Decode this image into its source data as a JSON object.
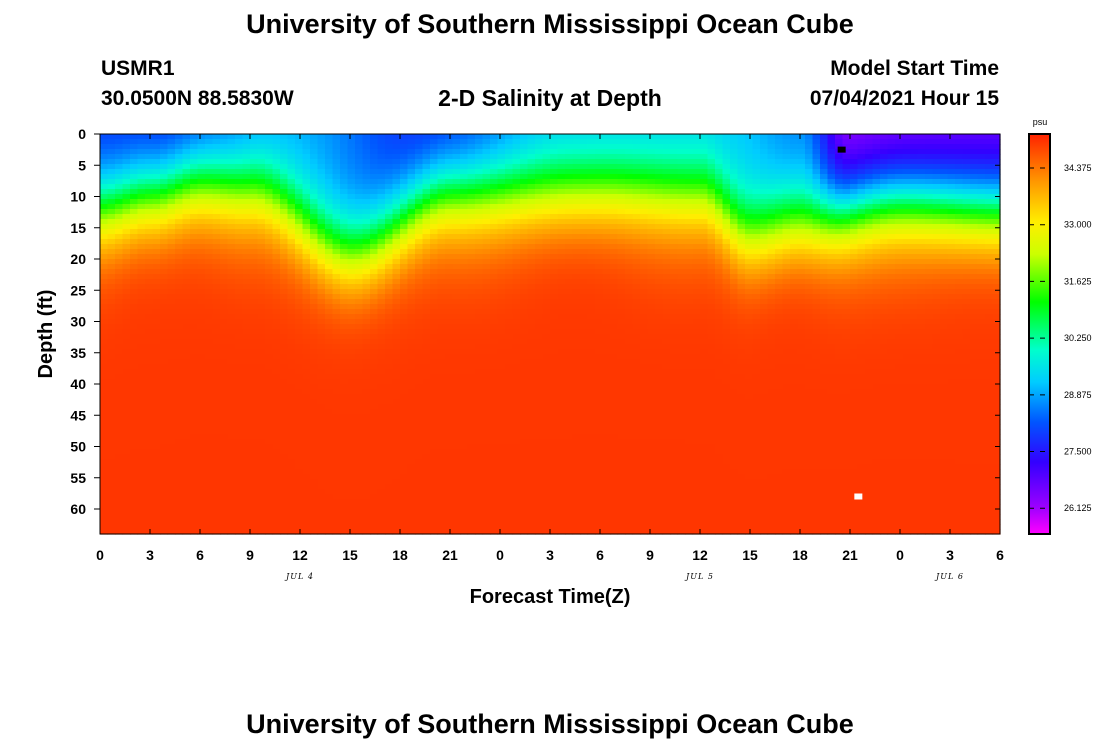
{
  "header": {
    "title": "University of Southern Mississippi Ocean Cube",
    "station": "USMR1",
    "coords": "30.0500N  88.5830W",
    "subtitle": "2-D Salinity at Depth",
    "model_label": "Model Start Time",
    "model_time": "07/04/2021 Hour 15"
  },
  "footer": {
    "title": "University of Southern Mississippi Ocean Cube"
  },
  "colors": {
    "background": "#ffffff",
    "axis": "#000000"
  },
  "chart_data": {
    "type": "heatmap",
    "title": "2-D Salinity at Depth",
    "xlabel": "Forecast Time(Z)",
    "ylabel": "Depth (ft)",
    "x_ticks": [
      "0",
      "3",
      "6",
      "9",
      "12",
      "15",
      "18",
      "21",
      "0",
      "3",
      "6",
      "9",
      "12",
      "15",
      "18",
      "21",
      "0",
      "3",
      "6"
    ],
    "x_range_hours": [
      0,
      54
    ],
    "date_labels": [
      {
        "text": "JUL 4",
        "hour": 12
      },
      {
        "text": "JUL 5",
        "hour": 36
      },
      {
        "text": "JUL 6",
        "hour": 51
      }
    ],
    "y_ticks": [
      "0",
      "5",
      "10",
      "15",
      "20",
      "25",
      "30",
      "35",
      "40",
      "45",
      "50",
      "55",
      "60"
    ],
    "y_range_ft": [
      0,
      64
    ],
    "colorbar": {
      "unit": "psu",
      "min": 25.5,
      "max": 35.2,
      "ticks": [
        "34.375",
        "33.000",
        "31.625",
        "30.250",
        "28.875",
        "27.500",
        "26.125"
      ],
      "tick_values": [
        34.375,
        33.0,
        31.625,
        30.25,
        28.875,
        27.5,
        26.125
      ]
    },
    "surface_salinity_psu": [
      {
        "hour": 0,
        "value": 27.7
      },
      {
        "hour": 4,
        "value": 27.5
      },
      {
        "hour": 12,
        "value": 28.8
      },
      {
        "hour": 20,
        "value": 27.6
      },
      {
        "hour": 28,
        "value": 28.9
      },
      {
        "hour": 38,
        "value": 29.1
      },
      {
        "hour": 42,
        "value": 28.5
      },
      {
        "hour": 45,
        "value": 26.1
      },
      {
        "hour": 54,
        "value": 26.4
      }
    ],
    "halocline_depth_ft": [
      {
        "hour": 0,
        "value": 12
      },
      {
        "hour": 3,
        "value": 10
      },
      {
        "hour": 6,
        "value": 8
      },
      {
        "hour": 9,
        "value": 9
      },
      {
        "hour": 15,
        "value": 19
      },
      {
        "hour": 21,
        "value": 10
      },
      {
        "hour": 30,
        "value": 9
      },
      {
        "hour": 36,
        "value": 10
      },
      {
        "hour": 39,
        "value": 16
      },
      {
        "hour": 42,
        "value": 14
      },
      {
        "hour": 48,
        "value": 11
      },
      {
        "hour": 54,
        "value": 12
      }
    ],
    "bottom_salinity_psu": 35.0,
    "markers": [
      {
        "hour": 44.5,
        "depth_ft": 2.5,
        "color": "#000000"
      },
      {
        "hour": 45.5,
        "depth_ft": 58,
        "color": "#ffffff"
      }
    ]
  }
}
